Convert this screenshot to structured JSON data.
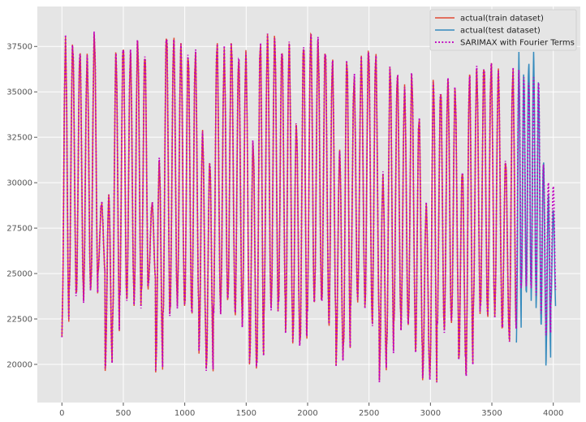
{
  "chart_data": {
    "type": "line",
    "style": "ggplot",
    "grid": true,
    "legend_position": "upper-right",
    "xlim": [
      -200,
      4220
    ],
    "ylim": [
      17900,
      39700
    ],
    "x_ticks": [
      0,
      500,
      1000,
      1500,
      2000,
      2500,
      3000,
      3500,
      4000
    ],
    "x_tick_labels": [
      "0",
      "500",
      "1000",
      "1500",
      "2000",
      "2500",
      "3000",
      "3500",
      "4000"
    ],
    "y_ticks": [
      20000,
      22500,
      25000,
      27500,
      30000,
      32500,
      35000,
      37500
    ],
    "y_tick_labels": [
      "20000",
      "22500",
      "25000",
      "27500",
      "30000",
      "32500",
      "35000",
      "37500"
    ],
    "series": [
      {
        "name": "actual(train dataset)",
        "color": "#e24a33",
        "line_style": "solid",
        "x_range": [
          0,
          3700
        ],
        "points_per_day": 24,
        "daily_extremes": [
          [
            21500,
            38000
          ],
          [
            23500,
            38000
          ],
          [
            23500,
            37600
          ],
          [
            23400,
            37200
          ],
          [
            23600,
            38500
          ],
          [
            25000,
            29000
          ],
          [
            19500,
            29500
          ],
          [
            21500,
            37500
          ],
          [
            23200,
            38000
          ],
          [
            23300,
            37500
          ],
          [
            22800,
            38200
          ],
          [
            23400,
            37500
          ],
          [
            24500,
            29000
          ],
          [
            19300,
            31500
          ],
          [
            22000,
            38700
          ],
          [
            22800,
            38300
          ],
          [
            23000,
            37900
          ],
          [
            22500,
            37500
          ],
          [
            22500,
            37500
          ],
          [
            20500,
            33000
          ],
          [
            19200,
            31500
          ],
          [
            22500,
            38100
          ],
          [
            22800,
            37400
          ],
          [
            23000,
            38100
          ],
          [
            22200,
            37300
          ],
          [
            22000,
            37400
          ],
          [
            19500,
            32500
          ],
          [
            19400,
            38300
          ],
          [
            22500,
            38400
          ],
          [
            22600,
            38400
          ],
          [
            22800,
            37800
          ],
          [
            21500,
            38000
          ],
          [
            20800,
            33500
          ],
          [
            20500,
            38200
          ],
          [
            22600,
            38600
          ],
          [
            23100,
            38200
          ],
          [
            22800,
            37800
          ],
          [
            21800,
            37100
          ],
          [
            19800,
            32000
          ],
          [
            20200,
            37300
          ],
          [
            23000,
            36100
          ],
          [
            23300,
            37100
          ],
          [
            22500,
            37800
          ],
          [
            21800,
            37500
          ],
          [
            19100,
            30500
          ],
          [
            20300,
            36800
          ],
          [
            21900,
            36400
          ],
          [
            21800,
            35500
          ],
          [
            21600,
            36300
          ],
          [
            20200,
            34000
          ],
          [
            19000,
            29000
          ],
          [
            18700,
            36000
          ],
          [
            21600,
            35500
          ],
          [
            21600,
            36000
          ],
          [
            21900,
            35500
          ],
          [
            19800,
            31000
          ],
          [
            19000,
            36400
          ],
          [
            22300,
            36600
          ],
          [
            22600,
            36900
          ],
          [
            22300,
            36900
          ],
          [
            22400,
            36500
          ],
          [
            21500,
            31500
          ],
          [
            21000,
            36500
          ]
        ]
      },
      {
        "name": "actual(test dataset)",
        "color": "#348abd",
        "line_style": "solid",
        "x_range": [
          3700,
          4020
        ],
        "points_per_day": 24,
        "daily_extremes": [
          [
            21200,
            37200
          ],
          [
            23700,
            36300
          ],
          [
            23500,
            37000
          ],
          [
            23400,
            37300
          ],
          [
            22600,
            35800
          ],
          [
            21800,
            31500
          ],
          [
            19800,
            29500
          ],
          [
            23100,
            28600
          ]
        ]
      },
      {
        "name": "SARIMAX with Fourier Terms",
        "color": "#bf00bf",
        "line_style": "dotted",
        "x_range": [
          0,
          4020
        ],
        "points_per_day": 24,
        "forecast_band": [
          [
            24000,
            36200
          ],
          [
            24500,
            35800
          ],
          [
            24300,
            35500
          ],
          [
            24200,
            35800
          ],
          [
            23800,
            35500
          ],
          [
            22800,
            31000
          ],
          [
            21600,
            30000
          ],
          [
            24000,
            29800
          ]
        ]
      }
    ]
  }
}
